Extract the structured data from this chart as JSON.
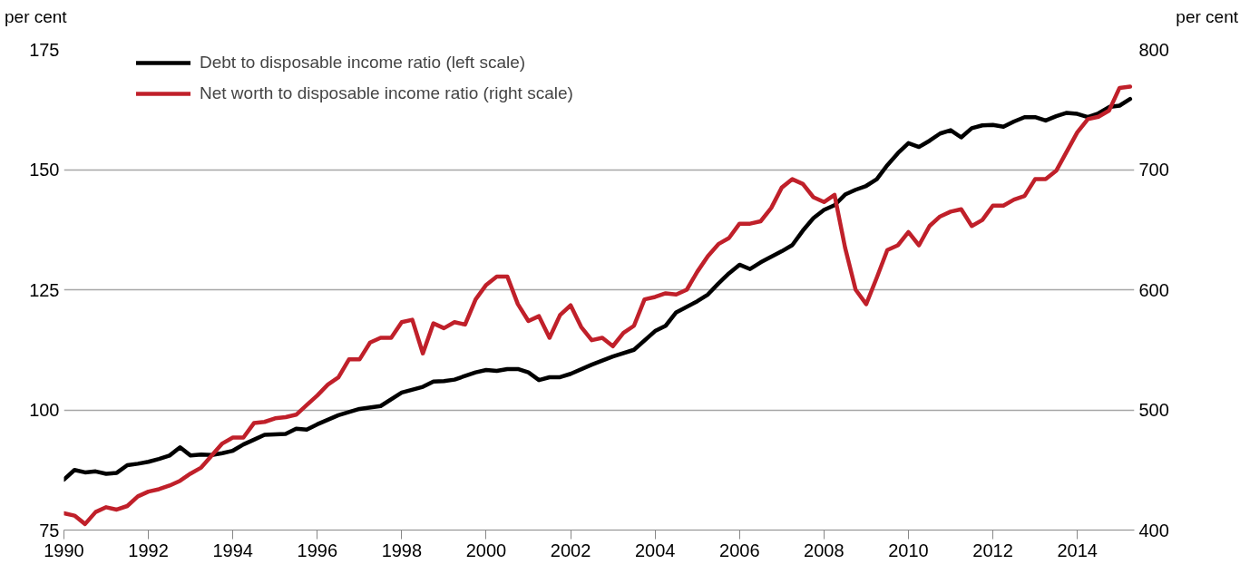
{
  "chart_data": {
    "type": "line",
    "ylabel": "per cent",
    "y2label": "per cent",
    "xlim": [
      1990,
      2015.35
    ],
    "xticks": [
      1990,
      1992,
      1994,
      1996,
      1998,
      2000,
      2002,
      2004,
      2006,
      2008,
      2010,
      2012,
      2014
    ],
    "ylim": [
      75,
      175
    ],
    "yticks": [
      75,
      100,
      125,
      150,
      175
    ],
    "y2lim": [
      400,
      800
    ],
    "y2ticks": [
      400,
      500,
      600,
      700,
      800
    ],
    "grid": "y",
    "legend": "top left",
    "line_style": "solid",
    "marker": "none",
    "series": [
      {
        "name": "Debt to disposable income ratio (left scale)",
        "color": "#000000",
        "x": [
          1990.0,
          1990.25,
          1990.5,
          1990.75,
          1991.0,
          1991.25,
          1991.5,
          1991.75,
          1992.0,
          1992.25,
          1992.5,
          1992.75,
          1993.0,
          1993.25,
          1993.5,
          1993.75,
          1994.0,
          1994.25,
          1994.5,
          1994.75,
          1995.0,
          1995.25,
          1995.5,
          1995.75,
          1996.0,
          1996.5,
          1997.0,
          1997.5,
          1998.0,
          1998.5,
          1998.75,
          1999.0,
          1999.25,
          1999.75,
          2000.0,
          2000.25,
          2000.5,
          2000.75,
          2001.0,
          2001.25,
          2001.5,
          2001.75,
          2002.0,
          2002.5,
          2003.0,
          2003.5,
          2004.0,
          2004.25,
          2004.5,
          2005.0,
          2005.25,
          2005.5,
          2005.75,
          2006.0,
          2006.25,
          2006.5,
          2007.0,
          2007.25,
          2007.5,
          2007.75,
          2008.0,
          2008.25,
          2008.5,
          2008.75,
          2009.0,
          2009.25,
          2009.5,
          2009.75,
          2010.0,
          2010.25,
          2010.5,
          2010.75,
          2011.0,
          2011.25,
          2011.5,
          2011.75,
          2012.0,
          2012.25,
          2012.5,
          2012.75,
          2013.0,
          2013.25,
          2013.5,
          2013.75,
          2014.0,
          2014.25,
          2014.5,
          2014.75,
          2015.0,
          2015.25
        ],
        "values": [
          85.5,
          87.5,
          87.0,
          87.2,
          86.7,
          86.9,
          88.5,
          88.8,
          89.2,
          89.8,
          90.5,
          92.2,
          90.5,
          90.7,
          90.6,
          91.0,
          91.5,
          92.8,
          93.8,
          94.8,
          94.9,
          95.0,
          96.1,
          95.9,
          97.0,
          98.9,
          100.2,
          100.8,
          103.6,
          104.8,
          105.9,
          106.0,
          106.3,
          107.8,
          108.3,
          108.1,
          108.5,
          108.5,
          107.8,
          106.2,
          106.8,
          106.8,
          107.5,
          109.4,
          111.1,
          112.5,
          116.4,
          117.5,
          120.3,
          122.6,
          124.0,
          126.3,
          128.4,
          130.2,
          129.3,
          130.7,
          133.0,
          134.3,
          137.3,
          139.9,
          141.6,
          142.6,
          144.8,
          145.8,
          146.6,
          148.0,
          150.9,
          153.4,
          155.5,
          154.7,
          156.0,
          157.5,
          158.2,
          156.7,
          158.6,
          159.2,
          159.3,
          158.9,
          160.0,
          160.9,
          160.9,
          160.2,
          161.1,
          161.8,
          161.6,
          160.9,
          161.7,
          163.0,
          163.3,
          164.7
        ]
      },
      {
        "name": "Net worth to disposable income ratio (right scale)",
        "color": "#c0202a",
        "axis": "y2",
        "x": [
          1990.0,
          1990.25,
          1990.5,
          1990.75,
          1991.0,
          1991.25,
          1991.5,
          1991.75,
          1992.0,
          1992.25,
          1992.5,
          1992.75,
          1993.0,
          1993.25,
          1993.5,
          1993.75,
          1994.0,
          1994.25,
          1994.5,
          1994.75,
          1995.0,
          1995.25,
          1995.5,
          1995.75,
          1996.0,
          1996.25,
          1996.5,
          1996.75,
          1997.0,
          1997.25,
          1997.5,
          1997.75,
          1998.0,
          1998.25,
          1998.5,
          1998.75,
          1999.0,
          1999.25,
          1999.5,
          1999.75,
          2000.0,
          2000.25,
          2000.5,
          2000.75,
          2001.0,
          2001.25,
          2001.5,
          2001.75,
          2002.0,
          2002.25,
          2002.5,
          2002.75,
          2003.0,
          2003.25,
          2003.5,
          2003.75,
          2004.0,
          2004.25,
          2004.5,
          2004.75,
          2005.0,
          2005.25,
          2005.5,
          2005.75,
          2006.0,
          2006.25,
          2006.5,
          2006.75,
          2007.0,
          2007.25,
          2007.5,
          2007.75,
          2008.0,
          2008.25,
          2008.5,
          2008.75,
          2009.0,
          2009.25,
          2009.5,
          2009.75,
          2010.0,
          2010.25,
          2010.5,
          2010.75,
          2011.0,
          2011.25,
          2011.5,
          2011.75,
          2012.0,
          2012.25,
          2012.5,
          2012.75,
          2013.0,
          2013.25,
          2013.5,
          2013.75,
          2014.0,
          2014.25,
          2014.5,
          2014.75,
          2015.0,
          2015.25
        ],
        "values": [
          414,
          412,
          405,
          415,
          419,
          417,
          420,
          428,
          432,
          434,
          437,
          441,
          447,
          452,
          462,
          472,
          477,
          477,
          489,
          490,
          493,
          494,
          496,
          504,
          512,
          521,
          527,
          542,
          542,
          556,
          560,
          560,
          573,
          575,
          547,
          572,
          568,
          573,
          571,
          592,
          604,
          611,
          611,
          588,
          574,
          578,
          560,
          579,
          587,
          569,
          558,
          560,
          553,
          564,
          570,
          592,
          594,
          597,
          596,
          600,
          615,
          628,
          638,
          643,
          655,
          655,
          657,
          668,
          685,
          692,
          688,
          677,
          673,
          679,
          635,
          600,
          588,
          610,
          633,
          637,
          648,
          637,
          653,
          661,
          665,
          667,
          653,
          658,
          670,
          670,
          675,
          678,
          692,
          692,
          699,
          715,
          731,
          742,
          744,
          749,
          768,
          769
        ]
      }
    ]
  }
}
